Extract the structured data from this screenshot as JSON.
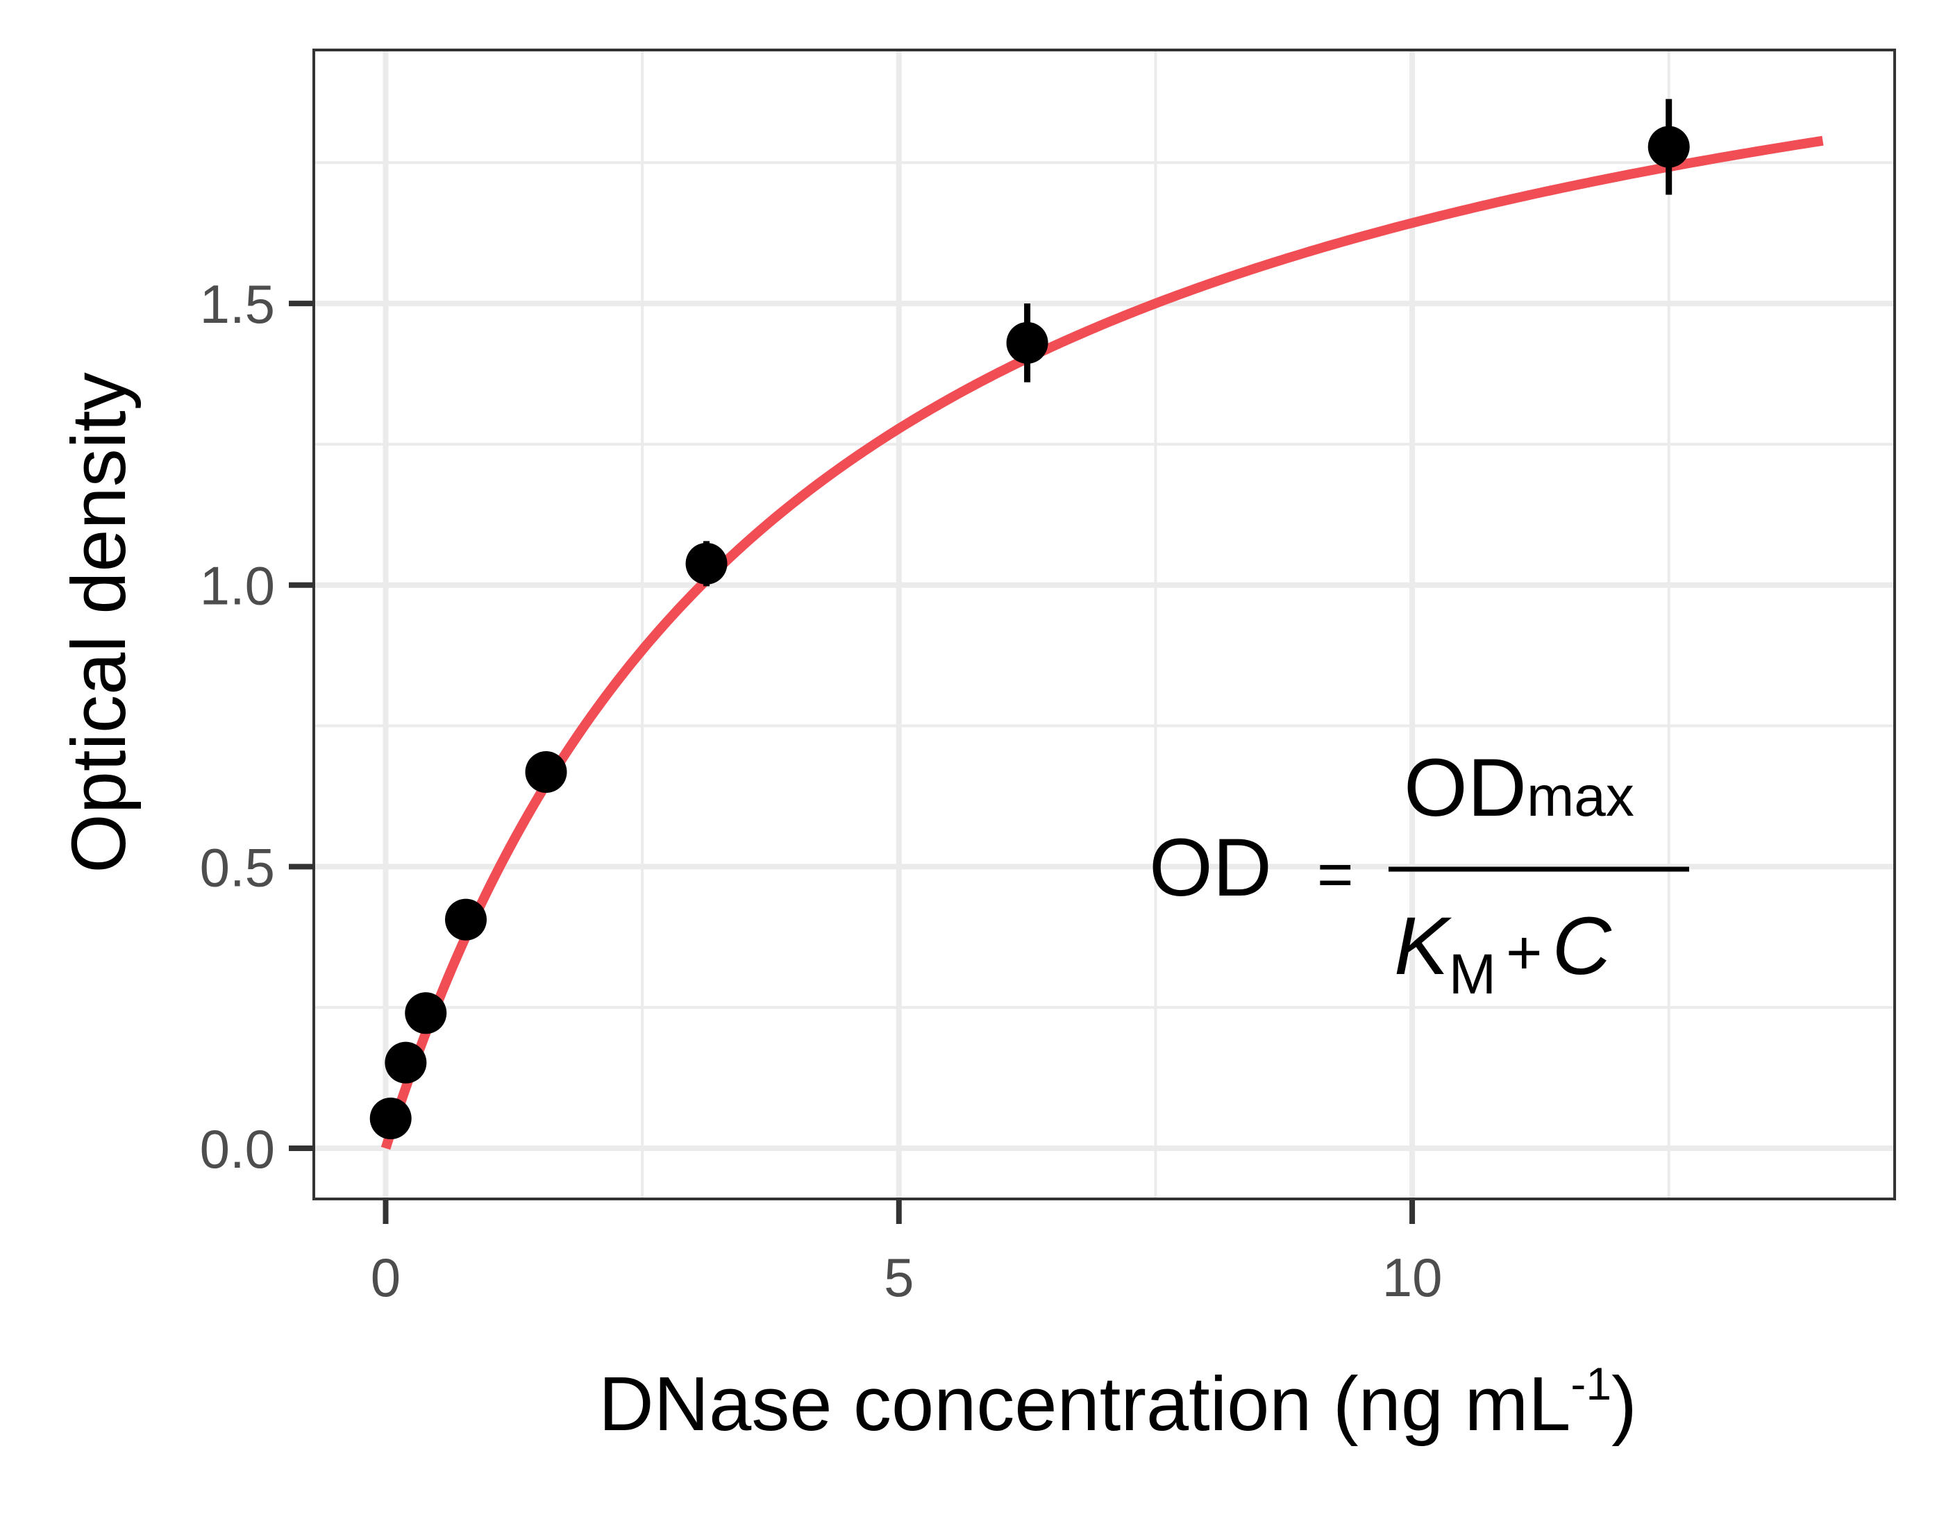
{
  "chart_data": {
    "type": "scatter",
    "xlabel": "DNase concentration (ng mL",
    "xlabel_superscript": "-1",
    "xlabel_close": ")",
    "ylabel": "Optical density",
    "xlim": [
      -0.7,
      14.7
    ],
    "ylim": [
      -0.09,
      1.95
    ],
    "x_ticks": [
      0,
      5,
      10
    ],
    "x_tick_labels": [
      "0",
      "5",
      "10"
    ],
    "x_minor_ticks": [
      2.5,
      7.5,
      12.5
    ],
    "y_ticks": [
      0.0,
      0.5,
      1.0,
      1.5
    ],
    "y_tick_labels": [
      "0.0",
      "0.5",
      "1.0",
      "1.5"
    ],
    "y_minor_ticks": [
      0.25,
      0.75,
      1.25,
      1.75
    ],
    "grid": true,
    "legend": "none",
    "points": [
      {
        "x": 0.04882812,
        "y": 0.053,
        "err": 0.004
      },
      {
        "x": 0.1953125,
        "y": 0.152,
        "err": 0.006
      },
      {
        "x": 0.390625,
        "y": 0.24,
        "err": 0.007
      },
      {
        "x": 0.78125,
        "y": 0.406,
        "err": 0.01
      },
      {
        "x": 1.5625,
        "y": 0.668,
        "err": 0.012
      },
      {
        "x": 3.125,
        "y": 1.038,
        "err": 0.04
      },
      {
        "x": 6.25,
        "y": 1.43,
        "err": 0.07
      },
      {
        "x": 12.5,
        "y": 1.778,
        "err": 0.085
      }
    ],
    "fit": {
      "type": "michaelis-menten",
      "od_max": 2.3,
      "km": 4.0,
      "x_range": [
        0,
        14
      ]
    },
    "equation": {
      "lhs": "OD",
      "equals": "=",
      "numerator_main": "OD",
      "numerator_sub": "max",
      "denominator_k": "K",
      "denominator_k_sub": "M",
      "denominator_plus": "+",
      "denominator_c": "C"
    },
    "colors": {
      "fit_line": "#f04e54",
      "points": "#000000",
      "grid": "#ebebeb",
      "panel_border": "#333333"
    }
  }
}
